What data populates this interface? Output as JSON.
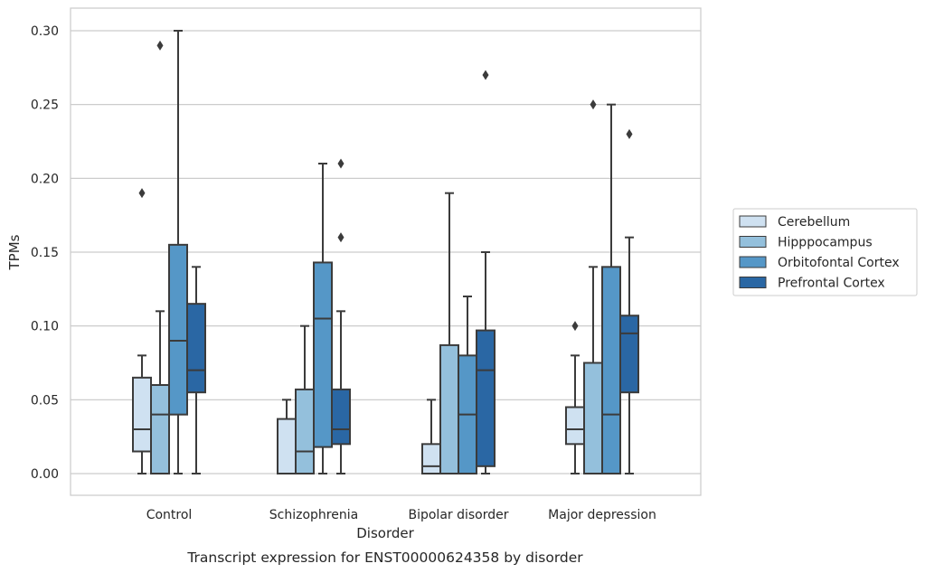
{
  "chart_data": {
    "type": "boxplot",
    "caption": "Transcript expression for ENST00000624358 by disorder",
    "xlabel": "Disorder",
    "ylabel": "TPMs",
    "ylim": [
      -0.015,
      0.315
    ],
    "yticks": [
      0.0,
      0.05,
      0.1,
      0.15,
      0.2,
      0.25,
      0.3
    ],
    "ytick_labels": [
      "0.00",
      "0.05",
      "0.10",
      "0.15",
      "0.20",
      "0.25",
      "0.30"
    ],
    "grid": true,
    "legend_position": "right",
    "categories": [
      "Control",
      "Schizophrenia",
      "Bipolar disorder",
      "Major depression"
    ],
    "series": [
      {
        "name": "Cerebellum",
        "color": "#cfe1f1",
        "boxes": [
          {
            "whisker_low": 0.0,
            "q1": 0.015,
            "median": 0.03,
            "q3": 0.065,
            "whisker_high": 0.08,
            "outliers": [
              0.19
            ]
          },
          {
            "whisker_low": 0.0,
            "q1": 0.0,
            "median": 0.0,
            "q3": 0.037,
            "whisker_high": 0.05,
            "outliers": []
          },
          {
            "whisker_low": 0.0,
            "q1": 0.0,
            "median": 0.005,
            "q3": 0.02,
            "whisker_high": 0.05,
            "outliers": []
          },
          {
            "whisker_low": 0.0,
            "q1": 0.02,
            "median": 0.03,
            "q3": 0.045,
            "whisker_high": 0.08,
            "outliers": [
              0.1
            ]
          }
        ]
      },
      {
        "name": "Hipppocampus",
        "color": "#94c0dc",
        "boxes": [
          {
            "whisker_low": 0.0,
            "q1": 0.0,
            "median": 0.04,
            "q3": 0.06,
            "whisker_high": 0.11,
            "outliers": [
              0.29
            ]
          },
          {
            "whisker_low": 0.0,
            "q1": 0.0,
            "median": 0.015,
            "q3": 0.057,
            "whisker_high": 0.1,
            "outliers": []
          },
          {
            "whisker_low": 0.0,
            "q1": 0.0,
            "median": 0.0,
            "q3": 0.087,
            "whisker_high": 0.19,
            "outliers": []
          },
          {
            "whisker_low": 0.0,
            "q1": 0.0,
            "median": 0.0,
            "q3": 0.075,
            "whisker_high": 0.14,
            "outliers": [
              0.25
            ]
          }
        ]
      },
      {
        "name": "Orbitofontal Cortex",
        "color": "#5597c7",
        "boxes": [
          {
            "whisker_low": 0.0,
            "q1": 0.04,
            "median": 0.09,
            "q3": 0.155,
            "whisker_high": 0.3,
            "outliers": []
          },
          {
            "whisker_low": 0.0,
            "q1": 0.018,
            "median": 0.105,
            "q3": 0.143,
            "whisker_high": 0.21,
            "outliers": []
          },
          {
            "whisker_low": 0.0,
            "q1": 0.0,
            "median": 0.04,
            "q3": 0.08,
            "whisker_high": 0.12,
            "outliers": []
          },
          {
            "whisker_low": 0.0,
            "q1": 0.0,
            "median": 0.04,
            "q3": 0.14,
            "whisker_high": 0.25,
            "outliers": []
          }
        ]
      },
      {
        "name": "Prefrontal Cortex",
        "color": "#2a67a4",
        "boxes": [
          {
            "whisker_low": 0.0,
            "q1": 0.055,
            "median": 0.07,
            "q3": 0.115,
            "whisker_high": 0.14,
            "outliers": []
          },
          {
            "whisker_low": 0.0,
            "q1": 0.02,
            "median": 0.03,
            "q3": 0.057,
            "whisker_high": 0.11,
            "outliers": [
              0.16,
              0.21
            ]
          },
          {
            "whisker_low": 0.0,
            "q1": 0.005,
            "median": 0.07,
            "q3": 0.097,
            "whisker_high": 0.15,
            "outliers": [
              0.27
            ]
          },
          {
            "whisker_low": 0.0,
            "q1": 0.055,
            "median": 0.095,
            "q3": 0.107,
            "whisker_high": 0.16,
            "outliers": [
              0.23
            ]
          }
        ]
      }
    ]
  }
}
